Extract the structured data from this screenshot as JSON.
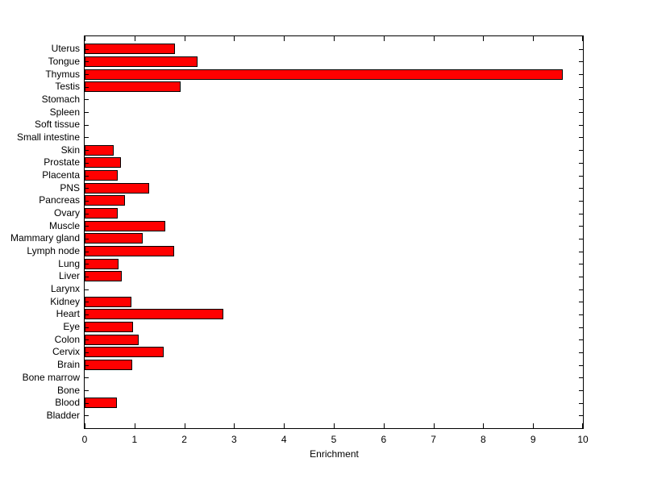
{
  "figure": {
    "background_color": "#ffffff",
    "axis_color": "#000000"
  },
  "chart_data": {
    "type": "bar",
    "orientation": "horizontal",
    "title": "",
    "xlabel": "Enrichment",
    "ylabel": "",
    "categories": [
      "Uterus",
      "Tongue",
      "Thymus",
      "Testis",
      "Stomach",
      "Spleen",
      "Soft tissue",
      "Small intestine",
      "Skin",
      "Prostate",
      "Placenta",
      "PNS",
      "Pancreas",
      "Ovary",
      "Muscle",
      "Mammary gland",
      "Lymph node",
      "Lung",
      "Liver",
      "Larynx",
      "Kidney",
      "Heart",
      "Eye",
      "Colon",
      "Cervix",
      "Brain",
      "Bone marrow",
      "Bone",
      "Blood",
      "Bladder"
    ],
    "values": [
      1.81,
      2.26,
      9.6,
      1.92,
      0,
      0,
      0,
      0,
      0.58,
      0.72,
      0.67,
      1.3,
      0.81,
      0.67,
      1.62,
      1.16,
      1.79,
      0.68,
      0.75,
      0,
      0.93,
      2.78,
      0.97,
      1.08,
      1.59,
      0.96,
      0,
      0,
      0.65,
      0
    ],
    "xlim": [
      0,
      10
    ],
    "xticks": [
      0,
      1,
      2,
      3,
      4,
      5,
      6,
      7,
      8,
      9,
      10
    ],
    "bar_color": "#ff0000",
    "bar_edge_color": "#000000",
    "grid": false,
    "legend": null
  }
}
